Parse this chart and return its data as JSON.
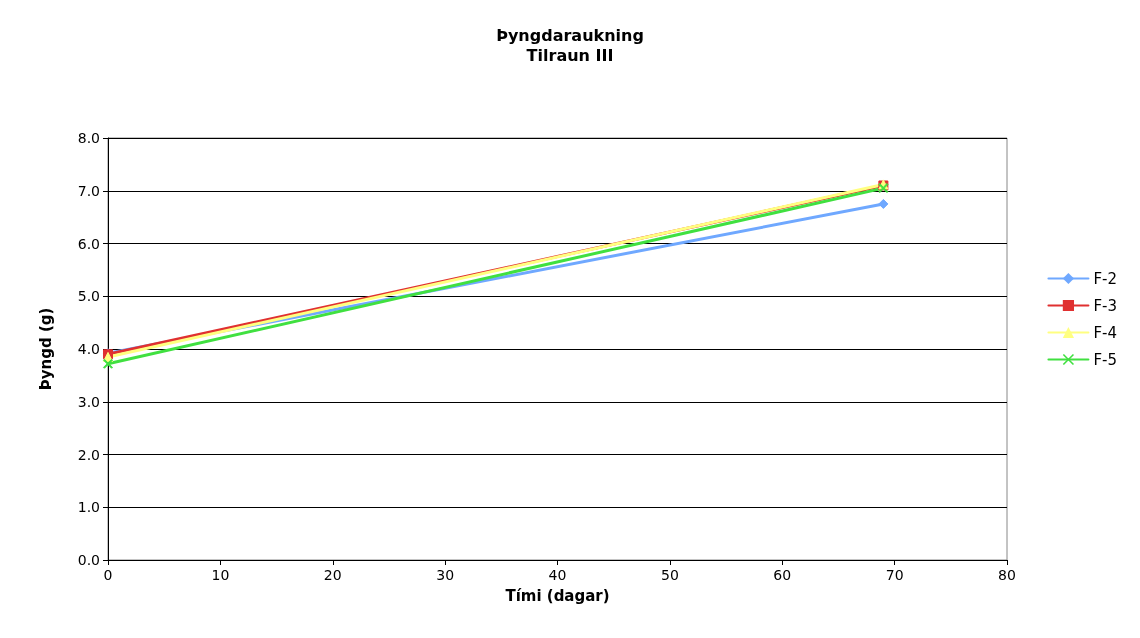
{
  "chart_data": {
    "type": "line",
    "title": "Þyngdaraukning",
    "subtitle": "Tilraun III",
    "xlabel": "Tími (dagar)",
    "ylabel": "Þyngd (g)",
    "x": [
      0,
      69
    ],
    "series": [
      {
        "name": "F-2",
        "color": "#6fa8ff",
        "values": [
          3.92,
          6.75
        ],
        "marker": "diamond"
      },
      {
        "name": "F-3",
        "color": "#e03030",
        "values": [
          3.9,
          7.1
        ],
        "marker": "square"
      },
      {
        "name": "F-4",
        "color": "#ffff80",
        "values": [
          3.85,
          7.12
        ],
        "marker": "triangle"
      },
      {
        "name": "F-5",
        "color": "#40e040",
        "values": [
          3.72,
          7.05
        ],
        "marker": "cross"
      }
    ],
    "xlim": [
      0,
      80
    ],
    "xticks": [
      0,
      10,
      20,
      30,
      40,
      50,
      60,
      70,
      80
    ],
    "ylim": [
      0,
      8
    ],
    "yticks": [
      {
        "value": 0,
        "label": "0.0"
      },
      {
        "value": 1,
        "label": "1.0"
      },
      {
        "value": 2,
        "label": "2.0"
      },
      {
        "value": 3,
        "label": "3.0"
      },
      {
        "value": 4,
        "label": "4.0"
      },
      {
        "value": 5,
        "label": "5.0"
      },
      {
        "value": 6,
        "label": "6.0"
      },
      {
        "value": 7,
        "label": "7.0"
      },
      {
        "value": 8,
        "label": "8.0"
      }
    ],
    "grid": "y",
    "legend": "right",
    "line_style": "solid"
  }
}
